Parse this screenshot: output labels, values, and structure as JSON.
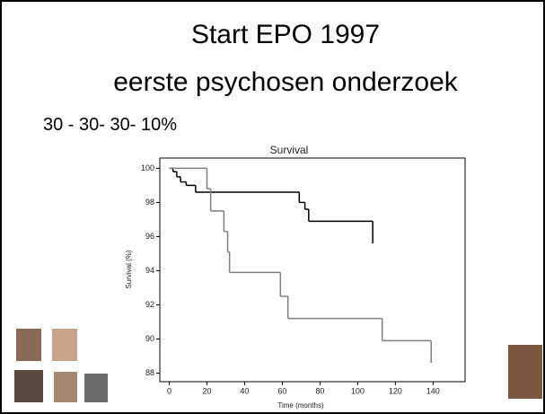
{
  "slide": {
    "title_lines": [
      "Start EPO 1997",
      "eerste psychosen onderzoek"
    ],
    "subtitle": "30 - 30- 30- 10%"
  },
  "chart_data": {
    "type": "step",
    "title": "Survival",
    "x_label": "Time (months)",
    "y_label": "Survival (%)",
    "series": [
      {
        "color": "#000000",
        "x": [
          0,
          2,
          4,
          6,
          9,
          14,
          69,
          72,
          74,
          108
        ],
        "values": [
          100,
          99.8,
          99.5,
          99.2,
          99.0,
          98.6,
          98.0,
          97.6,
          96.9,
          95.6
        ]
      },
      {
        "color": "#7f7f7f",
        "x": [
          0,
          20,
          22,
          29,
          31,
          32,
          59,
          63,
          113,
          139
        ],
        "values": [
          100,
          98.8,
          97.5,
          96.3,
          95.1,
          93.9,
          92.5,
          91.2,
          89.9,
          88.6
        ]
      }
    ],
    "xlim": [
      -5,
      157
    ],
    "ylim": [
      87.5,
      100.6
    ],
    "xticks": [
      0,
      20,
      40,
      60,
      80,
      100,
      120,
      140
    ],
    "yticks": [
      88,
      90,
      92,
      94,
      96,
      98,
      100
    ]
  }
}
